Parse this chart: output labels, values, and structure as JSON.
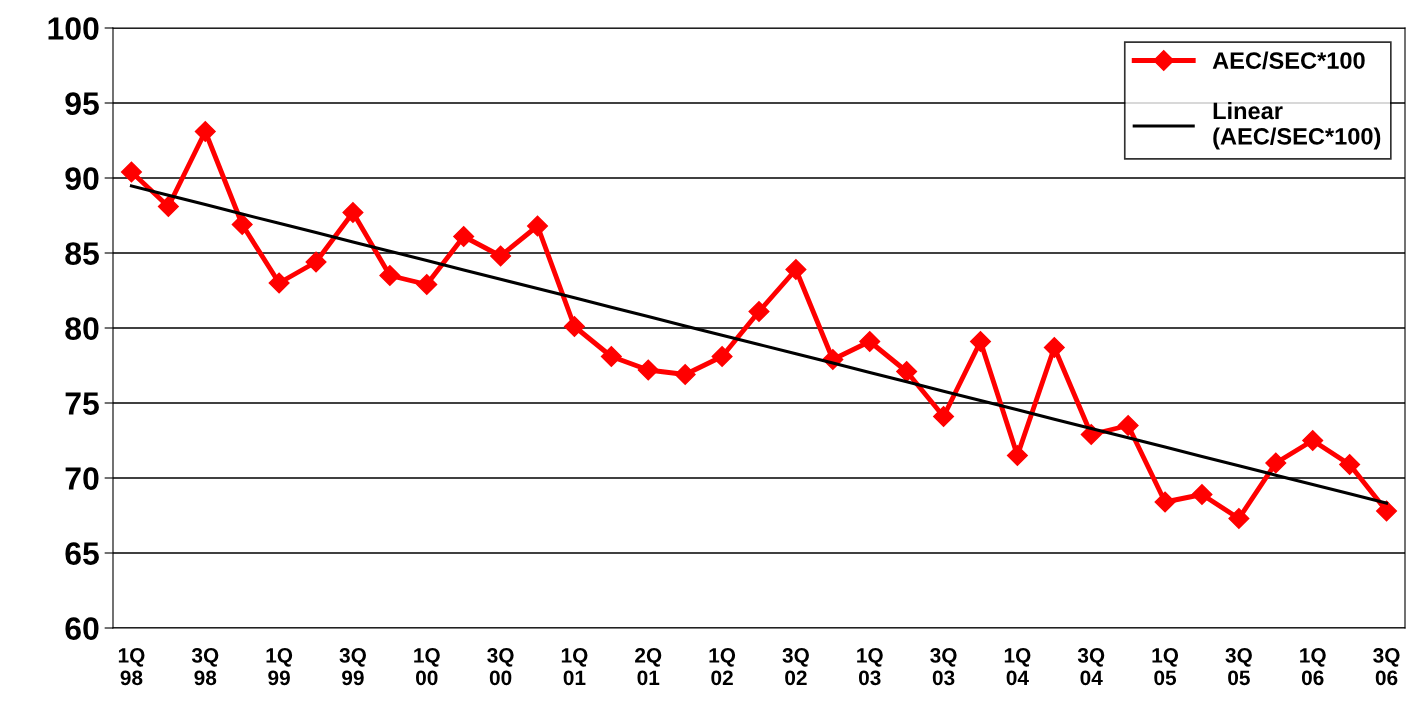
{
  "chart_data": {
    "type": "line",
    "categories": [
      "1Q\n98",
      null,
      "3Q\n98",
      null,
      "1Q\n99",
      null,
      "3Q\n99",
      null,
      "1Q\n00",
      null,
      "3Q\n00",
      null,
      "1Q\n01",
      null,
      "2Q\n01",
      null,
      "1Q\n02",
      null,
      "3Q\n02",
      null,
      "1Q\n03",
      null,
      "3Q\n03",
      null,
      "1Q\n04",
      null,
      "3Q\n04",
      null,
      "1Q\n05",
      null,
      "3Q\n05",
      null,
      "1Q\n06",
      null,
      "3Q\n06"
    ],
    "series": [
      {
        "name": "AEC/SEC*100",
        "color": "#ff0000",
        "marker": "diamond",
        "values": [
          90.4,
          88.1,
          93.1,
          86.9,
          83.0,
          84.4,
          87.7,
          83.5,
          82.9,
          86.1,
          84.8,
          86.8,
          80.1,
          78.1,
          77.2,
          76.9,
          78.1,
          81.1,
          83.9,
          77.9,
          79.1,
          77.1,
          74.1,
          79.1,
          71.5,
          78.7,
          72.9,
          73.5,
          68.4,
          68.9,
          67.3,
          71.0,
          72.5,
          70.9,
          67.8
        ]
      },
      {
        "name": "Linear\n(AEC/SEC*100)",
        "color": "#000000",
        "marker": "none",
        "values": [
          89.47,
          88.85,
          88.23,
          87.6,
          86.98,
          86.36,
          85.74,
          85.12,
          84.5,
          83.87,
          83.25,
          82.63,
          82.01,
          81.39,
          80.76,
          80.14,
          79.52,
          78.9,
          78.28,
          77.66,
          77.03,
          76.41,
          75.79,
          75.17,
          74.55,
          73.92,
          73.3,
          72.68,
          72.06,
          71.44,
          70.82,
          70.19,
          69.57,
          68.95,
          68.33
        ]
      }
    ],
    "ylim": [
      60,
      100
    ],
    "yticks": [
      60,
      65,
      70,
      75,
      80,
      85,
      90,
      95,
      100
    ],
    "grid": "y",
    "legend": "top right"
  }
}
